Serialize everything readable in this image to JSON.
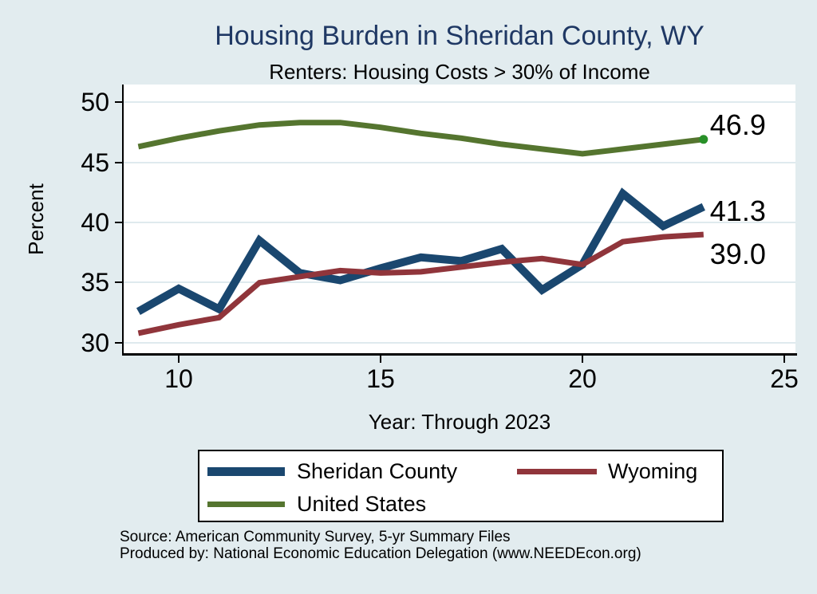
{
  "title": "Housing Burden in Sheridan County, WY",
  "subtitle": "Renters: Housing Costs > 30% of Income",
  "colors": {
    "background": "#e2ecef",
    "plot_background": "#ffffff",
    "gridline": "#dfeaee",
    "title_text": "#1f3864",
    "axis": "#000000",
    "endpoint_dot": "#289028"
  },
  "chart_data": {
    "type": "line",
    "title": "Housing Burden in Sheridan County, WY",
    "subtitle": "Renters: Housing Costs > 30% of Income",
    "xlabel": "Year: Through 2023",
    "ylabel": "Percent",
    "x": [
      9,
      10,
      11,
      12,
      13,
      14,
      15,
      16,
      17,
      18,
      19,
      20,
      21,
      22,
      23
    ],
    "xticks": [
      10,
      15,
      20,
      25
    ],
    "yticks": [
      30,
      35,
      40,
      45,
      50
    ],
    "xlim": [
      8.636,
      25.277
    ],
    "ylim": [
      29.139,
      51.457
    ],
    "grid": true,
    "legend_position": "bottom",
    "series": [
      {
        "name": "Sheridan County",
        "color": "#1a476f",
        "line_width": 10,
        "values": [
          32.6,
          34.5,
          32.8,
          38.5,
          35.8,
          35.2,
          36.2,
          37.1,
          36.8,
          37.8,
          34.4,
          36.5,
          42.4,
          39.7,
          41.3
        ],
        "end_label": "41.3",
        "label_dy": -15,
        "end_marker": false
      },
      {
        "name": "Wyoming",
        "color": "#90353b",
        "line_width": 7,
        "values": [
          30.8,
          31.5,
          32.1,
          35.0,
          35.5,
          36.0,
          35.8,
          35.9,
          36.3,
          36.7,
          37.0,
          36.5,
          38.4,
          38.8,
          39.0
        ],
        "end_label": "39.0",
        "label_dy": 4,
        "end_marker": false
      },
      {
        "name": "United States",
        "color": "#55752f",
        "line_width": 7,
        "values": [
          46.3,
          47.0,
          47.6,
          48.1,
          48.3,
          48.3,
          47.9,
          47.4,
          47.0,
          46.5,
          46.1,
          45.7,
          46.1,
          46.5,
          46.9
        ],
        "end_label": "46.9",
        "label_dy": -39,
        "end_marker": true
      }
    ]
  },
  "legend": {
    "items": [
      {
        "label": "Sheridan County",
        "color": "#1a476f"
      },
      {
        "label": "Wyoming",
        "color": "#90353b"
      },
      {
        "label": "United States",
        "color": "#55752f"
      }
    ]
  },
  "source": {
    "line1": "Source: American Community Survey, 5-yr Summary Files",
    "line2": "Produced by: National Economic Education Delegation (www.NEEDEcon.org)"
  }
}
